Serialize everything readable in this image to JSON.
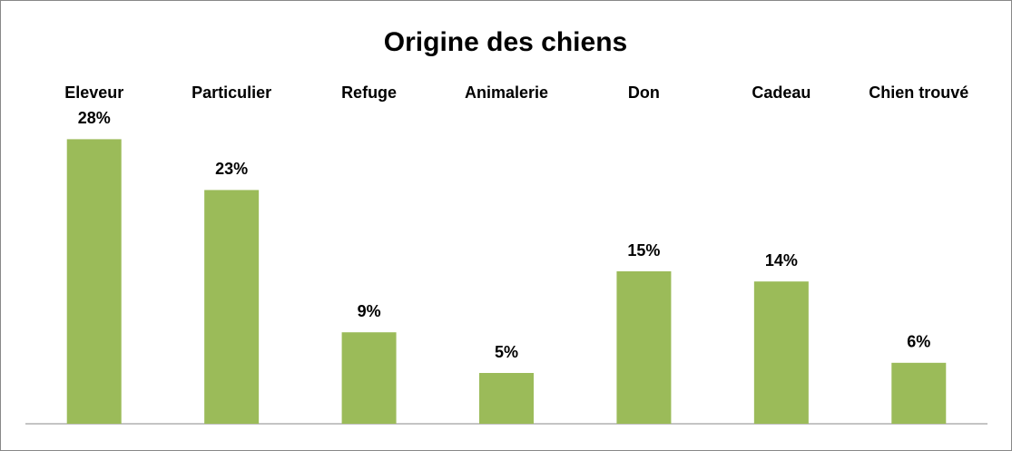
{
  "chart_data": {
    "type": "bar",
    "title": "Origine des chiens",
    "categories": [
      "Eleveur",
      "Particulier",
      "Refuge",
      "Animalerie",
      "Don",
      "Cadeau",
      "Chien trouvé"
    ],
    "values": [
      28,
      23,
      9,
      5,
      15,
      14,
      6
    ],
    "value_labels": [
      "28%",
      "23%",
      "9%",
      "5%",
      "15%",
      "14%",
      "6%"
    ],
    "color": "#9bbb59"
  }
}
